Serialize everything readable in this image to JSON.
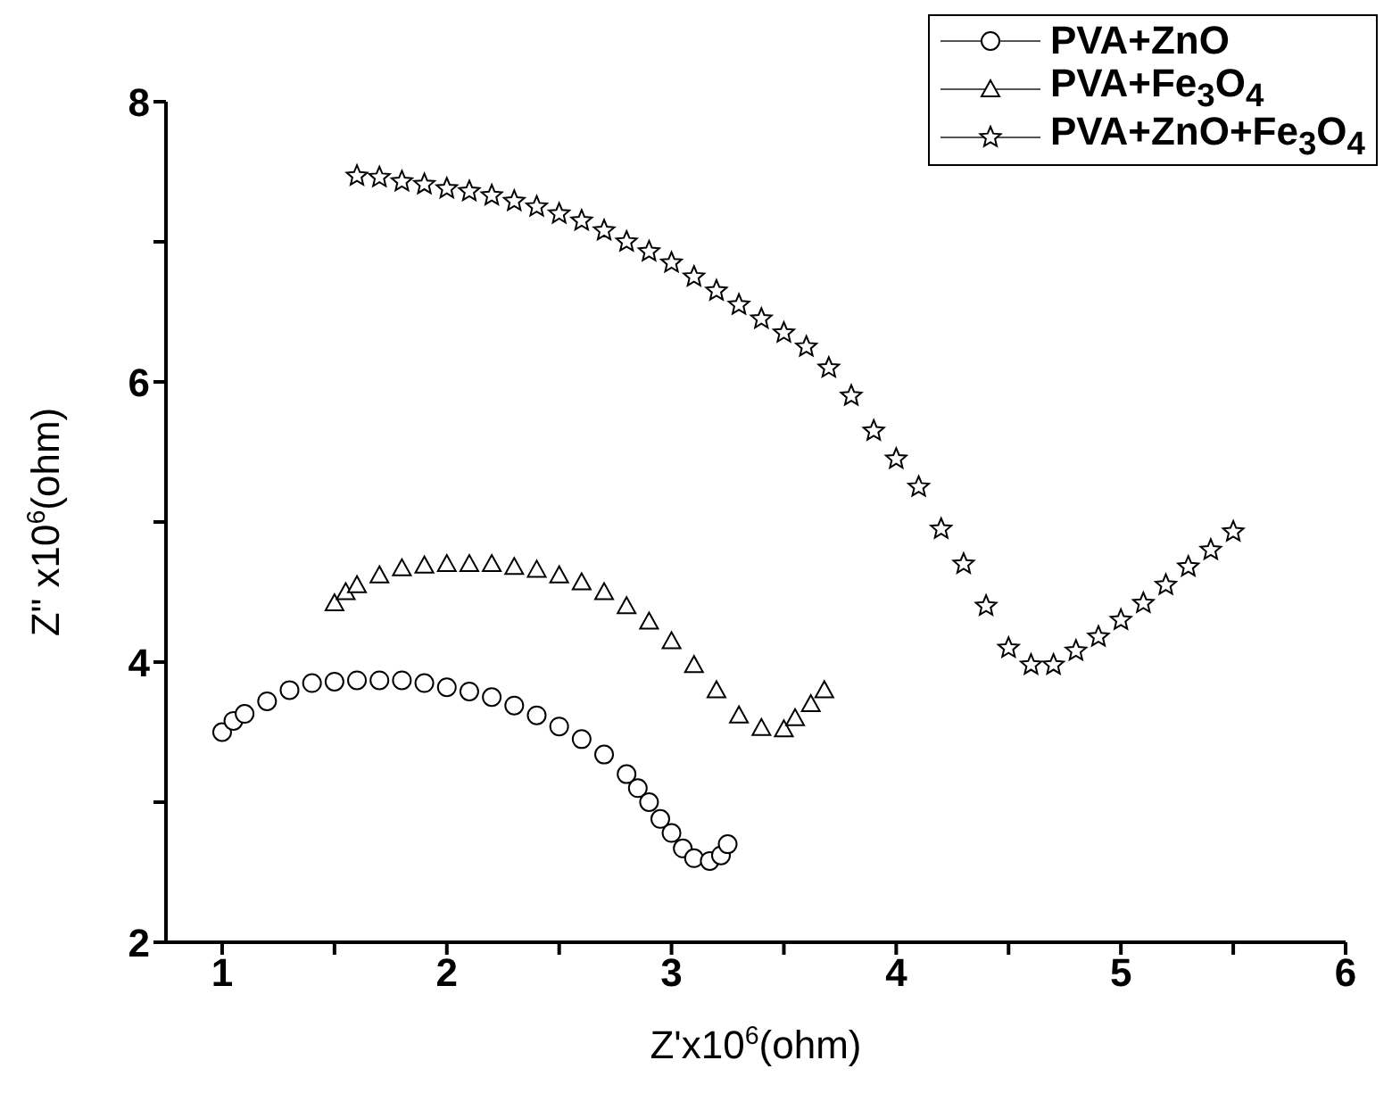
{
  "chart_data": {
    "type": "scatter",
    "xlabel": "Z'x10$^{6}$(ohm)",
    "ylabel": "Z\" x10$^{6}$(ohm)",
    "xlim": [
      0.75,
      6
    ],
    "ylim": [
      2,
      8
    ],
    "xticks": [
      1,
      {
        "value": 1.5,
        "label": null
      },
      2,
      {
        "value": 2.5,
        "label": null
      },
      3,
      {
        "value": 3.5,
        "label": null
      },
      4,
      {
        "value": 4.5,
        "label": null
      },
      5,
      {
        "value": 5.5,
        "label": null
      },
      6
    ],
    "yticks": [
      2,
      {
        "value": 3,
        "label": null
      },
      4,
      {
        "value": 5,
        "label": null
      },
      6,
      {
        "value": 7,
        "label": null
      },
      8
    ],
    "legend": "top right",
    "series": [
      {
        "name": "PVA+ZnO",
        "color": "#000000",
        "marker": "circle",
        "x": [
          1.0,
          1.05,
          1.1,
          1.2,
          1.3,
          1.4,
          1.5,
          1.6,
          1.7,
          1.8,
          1.9,
          2.0,
          2.1,
          2.2,
          2.3,
          2.4,
          2.5,
          2.6,
          2.7,
          2.8,
          2.85,
          2.9,
          2.95,
          3.0,
          3.05,
          3.1,
          3.17,
          3.22,
          3.25
        ],
        "values": [
          3.5,
          3.58,
          3.63,
          3.72,
          3.8,
          3.85,
          3.86,
          3.87,
          3.87,
          3.87,
          3.85,
          3.82,
          3.79,
          3.75,
          3.69,
          3.62,
          3.54,
          3.45,
          3.34,
          3.2,
          3.1,
          3.0,
          2.88,
          2.78,
          2.67,
          2.6,
          2.58,
          2.62,
          2.7
        ]
      },
      {
        "name": "PVA+Fe$_{3}$O$_{4}$",
        "color": "#000000",
        "marker": "triangle",
        "x": [
          1.5,
          1.55,
          1.6,
          1.7,
          1.8,
          1.9,
          2.0,
          2.1,
          2.2,
          2.3,
          2.4,
          2.5,
          2.6,
          2.7,
          2.8,
          2.9,
          3.0,
          3.1,
          3.2,
          3.3,
          3.4,
          3.5,
          3.55,
          3.62,
          3.68
        ],
        "values": [
          4.42,
          4.5,
          4.55,
          4.62,
          4.67,
          4.69,
          4.7,
          4.7,
          4.7,
          4.68,
          4.66,
          4.62,
          4.57,
          4.5,
          4.4,
          4.29,
          4.15,
          3.98,
          3.8,
          3.62,
          3.53,
          3.52,
          3.6,
          3.7,
          3.8
        ]
      },
      {
        "name": "PVA+ZnO+Fe$_{3}$O$_{4}$",
        "color": "#000000",
        "marker": "star",
        "x": [
          1.6,
          1.7,
          1.8,
          1.9,
          2.0,
          2.1,
          2.2,
          2.3,
          2.4,
          2.5,
          2.6,
          2.7,
          2.8,
          2.9,
          3.0,
          3.1,
          3.2,
          3.3,
          3.4,
          3.5,
          3.6,
          3.7,
          3.8,
          3.9,
          4.0,
          4.1,
          4.2,
          4.3,
          4.4,
          4.5,
          4.6,
          4.7,
          4.8,
          4.9,
          5.0,
          5.1,
          5.2,
          5.3,
          5.4,
          5.5
        ],
        "values": [
          7.47,
          7.46,
          7.43,
          7.41,
          7.38,
          7.36,
          7.33,
          7.29,
          7.25,
          7.2,
          7.15,
          7.08,
          7.0,
          6.93,
          6.85,
          6.75,
          6.65,
          6.55,
          6.45,
          6.35,
          6.25,
          6.1,
          5.9,
          5.65,
          5.45,
          5.25,
          4.95,
          4.7,
          4.4,
          4.1,
          3.98,
          3.98,
          4.08,
          4.18,
          4.3,
          4.42,
          4.55,
          4.68,
          4.8,
          4.93
        ]
      }
    ]
  }
}
